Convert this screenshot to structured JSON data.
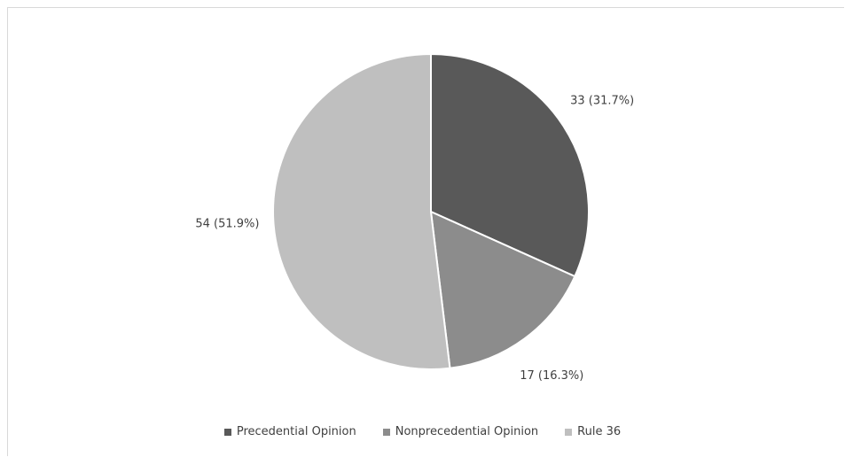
{
  "chart_data": {
    "type": "pie",
    "title": "",
    "categories": [
      "Precedential Opinion",
      "Nonprecedential Opinion",
      "Rule 36"
    ],
    "values": [
      33,
      17,
      54
    ],
    "data_labels": [
      "33 (31.7%)",
      "17 (16.3%)",
      "54 (51.9%)"
    ],
    "colors": [
      "#595959",
      "#8c8c8c",
      "#bfbfbf"
    ],
    "legend_position": "bottom",
    "start_angle": "top",
    "direction": "clockwise"
  },
  "legend": {
    "items": [
      {
        "label": "Precedential Opinion",
        "color": "#595959"
      },
      {
        "label": "Nonprecedential Opinion",
        "color": "#8c8c8c"
      },
      {
        "label": "Rule 36",
        "color": "#bfbfbf"
      }
    ]
  }
}
